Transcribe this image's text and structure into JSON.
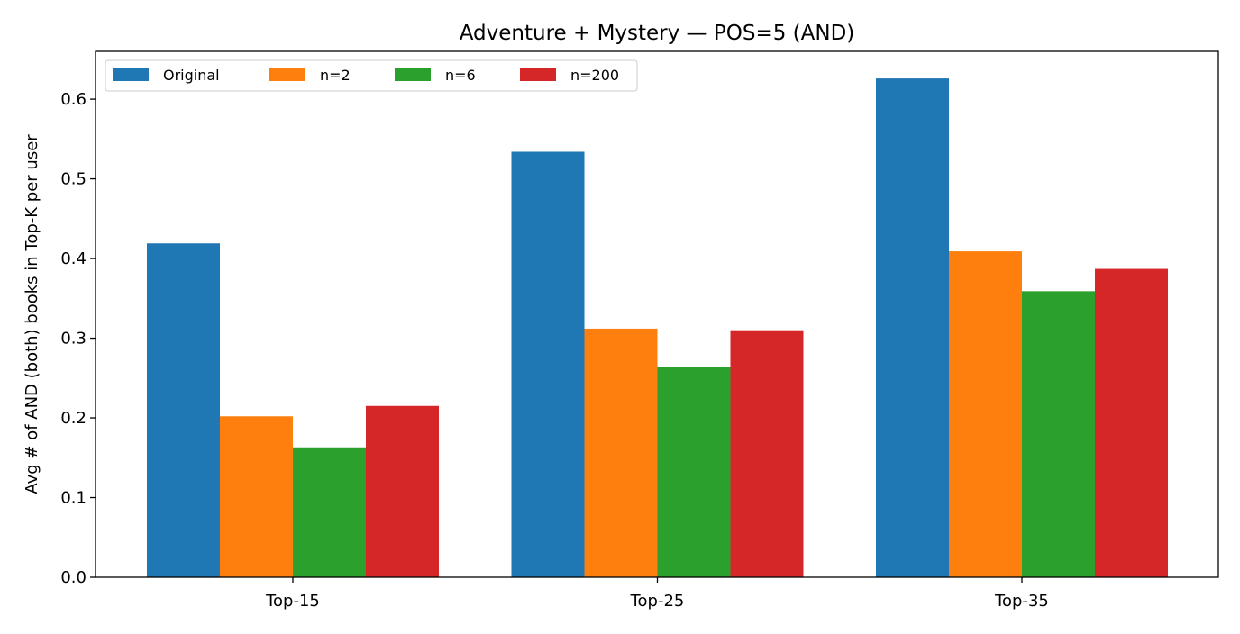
{
  "chart_data": {
    "type": "bar",
    "title": "Adventure + Mystery — POS=5 (AND)",
    "xlabel": "",
    "ylabel": "Avg # of AND (both) books in Top-K per user",
    "categories": [
      "Top-15",
      "Top-25",
      "Top-35"
    ],
    "series": [
      {
        "name": "Original",
        "color": "#1f77b4",
        "values": [
          0.419,
          0.534,
          0.626
        ]
      },
      {
        "name": "n=2",
        "color": "#ff7f0e",
        "values": [
          0.202,
          0.312,
          0.409
        ]
      },
      {
        "name": "n=6",
        "color": "#2ca02c",
        "values": [
          0.163,
          0.264,
          0.359
        ]
      },
      {
        "name": "n=200",
        "color": "#d62728",
        "values": [
          0.215,
          0.31,
          0.387
        ]
      }
    ],
    "ylim": [
      0,
      0.66
    ],
    "yticks": [
      "0.0",
      "0.1",
      "0.2",
      "0.3",
      "0.4",
      "0.5",
      "0.6"
    ],
    "grid": false,
    "legend_position": "top-left"
  }
}
